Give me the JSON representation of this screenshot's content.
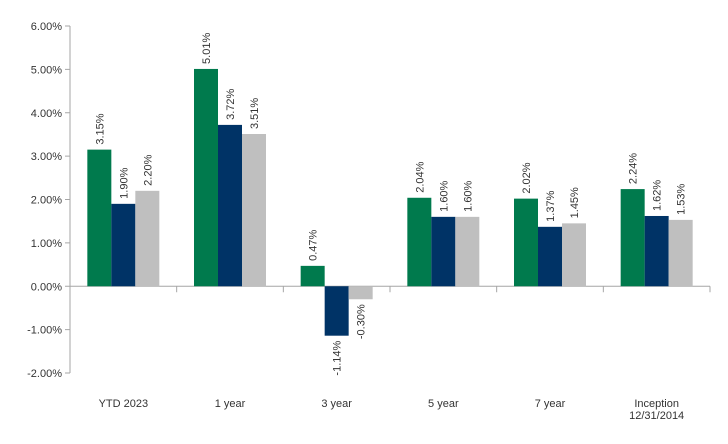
{
  "chart_data": {
    "type": "bar",
    "categories": [
      "YTD 2023",
      "1 year",
      "3 year",
      "5 year",
      "7 year",
      "Inception 12/31/2014"
    ],
    "category_lines": [
      [
        "YTD 2023"
      ],
      [
        "1 year"
      ],
      [
        "3 year"
      ],
      [
        "5 year"
      ],
      [
        "7 year"
      ],
      [
        "Inception",
        "12/31/2014"
      ]
    ],
    "series": [
      {
        "color": "#007a4d",
        "values": [
          3.15,
          5.01,
          0.47,
          2.04,
          2.02,
          2.24
        ],
        "labels": [
          "3.15%",
          "5.01%",
          "0.47%",
          "2.04%",
          "2.02%",
          "2.24%"
        ]
      },
      {
        "color": "#003366",
        "values": [
          1.9,
          3.72,
          -1.14,
          1.6,
          1.37,
          1.62
        ],
        "labels": [
          "1.90%",
          "3.72%",
          "-1.14%",
          "1.60%",
          "1.37%",
          "1.62%"
        ]
      },
      {
        "color": "#bfbfbf",
        "values": [
          2.2,
          3.51,
          -0.3,
          1.6,
          1.45,
          1.53
        ],
        "labels": [
          "2.20%",
          "3.51%",
          "-0.30%",
          "1.60%",
          "1.45%",
          "1.53%"
        ]
      }
    ],
    "ylim": [
      -2.0,
      6.0
    ],
    "yticks": [
      -2.0,
      -1.0,
      0.0,
      1.0,
      2.0,
      3.0,
      4.0,
      5.0,
      6.0
    ],
    "ytick_labels": [
      "-2.00%",
      "-1.00%",
      "0.00%",
      "1.00%",
      "2.00%",
      "3.00%",
      "4.00%",
      "5.00%",
      "6.00%"
    ],
    "grid": false,
    "legend": "none"
  }
}
